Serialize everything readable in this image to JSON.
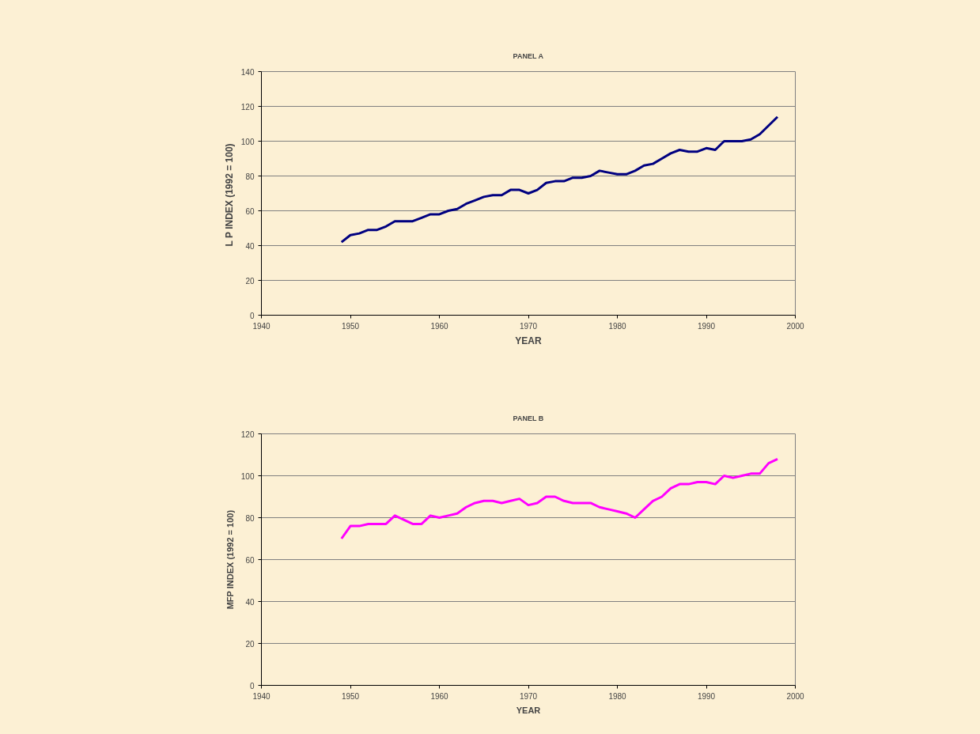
{
  "chart_data": [
    {
      "type": "line",
      "title": "PANEL A",
      "xlabel": "YEAR",
      "ylabel": "L P  INDEX (1992 = 100)",
      "x": [
        1949,
        1950,
        1951,
        1952,
        1953,
        1954,
        1955,
        1956,
        1957,
        1958,
        1959,
        1960,
        1961,
        1962,
        1963,
        1964,
        1965,
        1966,
        1967,
        1968,
        1969,
        1970,
        1971,
        1972,
        1973,
        1974,
        1975,
        1976,
        1977,
        1978,
        1979,
        1980,
        1981,
        1982,
        1983,
        1984,
        1985,
        1986,
        1987,
        1988,
        1989,
        1990,
        1991,
        1992,
        1993,
        1994,
        1995,
        1996,
        1997,
        1998
      ],
      "series": [
        {
          "color": "#000080",
          "values": [
            42,
            46,
            47,
            49,
            49,
            51,
            54,
            54,
            54,
            56,
            58,
            58,
            60,
            61,
            64,
            66,
            68,
            69,
            69,
            72,
            72,
            70,
            72,
            76,
            77,
            77,
            79,
            79,
            80,
            83,
            82,
            81,
            81,
            83,
            86,
            87,
            90,
            93,
            95,
            94,
            94,
            96,
            95,
            100,
            100,
            100,
            101,
            104,
            109,
            114
          ]
        }
      ],
      "xlim": [
        1940,
        2000
      ],
      "xticks": [
        1940,
        1950,
        1960,
        1970,
        1980,
        1990,
        2000
      ],
      "ylim": [
        0,
        140
      ],
      "yticks": [
        0,
        20,
        40,
        60,
        80,
        100,
        120,
        140
      ],
      "grid": "y",
      "marker": "none",
      "line_style": "solid"
    },
    {
      "type": "line",
      "title": "PANEL B",
      "xlabel": "YEAR",
      "ylabel": "MFP INDEX (1992 = 100)",
      "x": [
        1949,
        1950,
        1951,
        1952,
        1953,
        1954,
        1955,
        1956,
        1957,
        1958,
        1959,
        1960,
        1961,
        1962,
        1963,
        1964,
        1965,
        1966,
        1967,
        1968,
        1969,
        1970,
        1971,
        1972,
        1973,
        1974,
        1975,
        1976,
        1977,
        1978,
        1979,
        1980,
        1981,
        1982,
        1983,
        1984,
        1985,
        1986,
        1987,
        1988,
        1989,
        1990,
        1991,
        1992,
        1993,
        1994,
        1995,
        1996,
        1997,
        1998
      ],
      "series": [
        {
          "color": "#ff00ff",
          "values": [
            70,
            76,
            76,
            77,
            77,
            77,
            81,
            79,
            77,
            77,
            81,
            80,
            81,
            82,
            85,
            87,
            88,
            88,
            87,
            88,
            89,
            86,
            87,
            90,
            90,
            88,
            87,
            87,
            87,
            85,
            84,
            83,
            82,
            80,
            84,
            88,
            90,
            94,
            96,
            96,
            97,
            97,
            96,
            100,
            99,
            100,
            101,
            101,
            106,
            108
          ]
        }
      ],
      "xlim": [
        1940,
        2000
      ],
      "xticks": [
        1940,
        1950,
        1960,
        1970,
        1980,
        1990,
        2000
      ],
      "ylim": [
        0,
        120
      ],
      "yticks": [
        0,
        20,
        40,
        60,
        80,
        100,
        120
      ],
      "grid": "y",
      "marker": "none",
      "line_style": "solid"
    }
  ]
}
